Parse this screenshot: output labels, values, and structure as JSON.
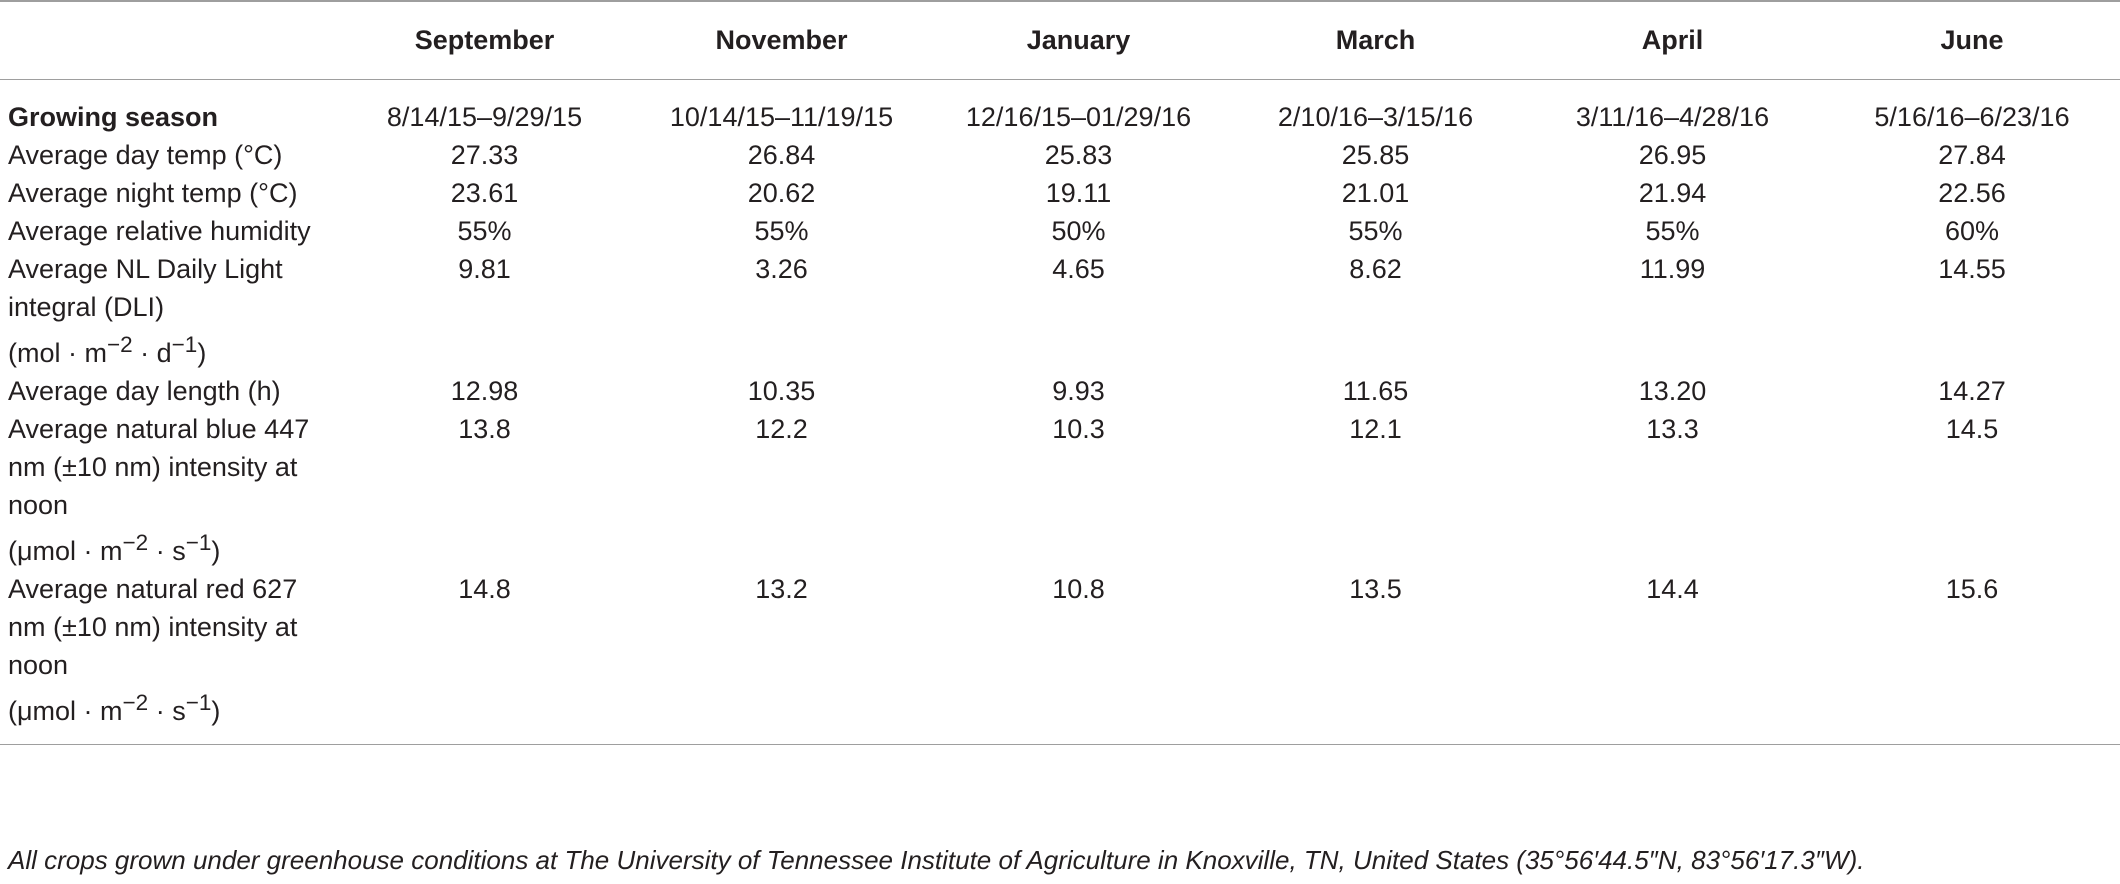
{
  "table": {
    "columns": [
      "",
      "September",
      "November",
      "January",
      "March",
      "April",
      "June"
    ],
    "rows": [
      {
        "label": "Growing season",
        "bold": true,
        "values": [
          "8/14/15–9/29/15",
          "10/14/15–11/19/15",
          "12/16/15–01/29/16",
          "2/10/16–3/15/16",
          "3/11/16–4/28/16",
          "5/16/16–6/23/16"
        ]
      },
      {
        "label": "Average day temp (°C)",
        "values": [
          "27.33",
          "26.84",
          "25.83",
          "25.85",
          "26.95",
          "27.84"
        ]
      },
      {
        "label": "Average night temp (°C)",
        "values": [
          "23.61",
          "20.62",
          "19.11",
          "21.01",
          "21.94",
          "22.56"
        ]
      },
      {
        "label": "Average relative humidity",
        "values": [
          "55%",
          "55%",
          "50%",
          "55%",
          "55%",
          "60%"
        ]
      },
      {
        "label": "Average NL Daily Light integral (DLI)",
        "unit_base": "(mol · m",
        "unit_exp1": "−2",
        "unit_mid": " · d",
        "unit_exp2": "−1",
        "unit_end": ")",
        "values": [
          "9.81",
          "3.26",
          "4.65",
          "8.62",
          "11.99",
          "14.55"
        ]
      },
      {
        "label": "Average day length (h)",
        "values": [
          "12.98",
          "10.35",
          "9.93",
          "11.65",
          "13.20",
          "14.27"
        ]
      },
      {
        "label": "Average natural blue 447 nm (±10 nm) intensity at noon",
        "unit_base": "(μmol · m",
        "unit_exp1": "−2",
        "unit_mid": " · s",
        "unit_exp2": "−1",
        "unit_end": ")",
        "values": [
          "13.8",
          "12.2",
          "10.3",
          "12.1",
          "13.3",
          "14.5"
        ]
      },
      {
        "label": "Average natural red 627 nm (±10 nm) intensity at noon",
        "unit_base": "(μmol · m",
        "unit_exp1": "−2",
        "unit_mid": " · s",
        "unit_exp2": "−1",
        "unit_end": ")",
        "values": [
          "14.8",
          "13.2",
          "10.8",
          "13.5",
          "14.4",
          "15.6"
        ]
      }
    ]
  },
  "footnote": "All crops grown under greenhouse conditions at The University of Tennessee Institute of Agriculture in Knoxville, TN, United States (35°56′44.5″N, 83°56′17.3″W)."
}
